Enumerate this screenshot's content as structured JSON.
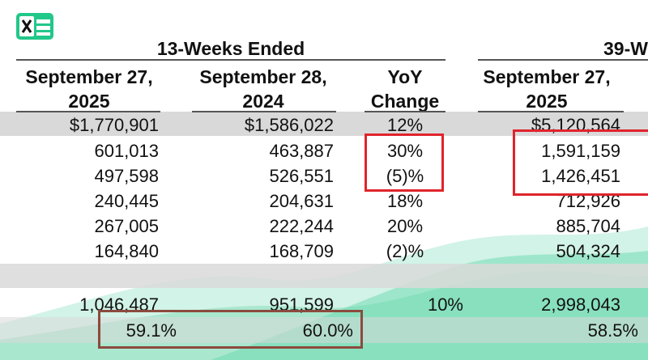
{
  "app": {
    "icon": "spreadsheet-icon",
    "accent": "#22c78a"
  },
  "header": {
    "period_13w": "13-Weeks Ended",
    "period_39w": "39-W"
  },
  "columns": [
    {
      "line1": "September 27,",
      "line2": "2025"
    },
    {
      "line1": "September 28,",
      "line2": "2024"
    },
    {
      "line1": "YoY",
      "line2": "Change"
    },
    {
      "line1": "September 27,",
      "line2": "2025"
    }
  ],
  "rows": [
    {
      "c1": "$1,770,901",
      "c2": "$1,586,022",
      "c3": "12%",
      "c4": "$5,120,564",
      "shaded": true
    },
    {
      "c1": "601,013",
      "c2": "463,887",
      "c3": "30%",
      "c4": "1,591,159",
      "shaded": false
    },
    {
      "c1": "497,598",
      "c2": "526,551",
      "c3": "(5)%",
      "c4": "1,426,451",
      "shaded": false
    },
    {
      "c1": "240,445",
      "c2": "204,631",
      "c3": "18%",
      "c4": "712,926",
      "shaded": false
    },
    {
      "c1": "267,005",
      "c2": "222,244",
      "c3": "20%",
      "c4": "885,704",
      "shaded": false
    },
    {
      "c1": "164,840",
      "c2": "168,709",
      "c3": "(2)%",
      "c4": "504,324",
      "shaded": false
    }
  ],
  "totals": {
    "c1": "1,046,487",
    "c2": "951,599",
    "c3": "10%",
    "c4": "2,998,043"
  },
  "margins": {
    "c1": "59.1%",
    "c2": "60.0%",
    "c4": "58.5%"
  },
  "colors": {
    "highlight_red": "#e0242c",
    "highlight_brown": "#8c4a3e",
    "row_shade": "#d9d9d9",
    "wave": "#3fcf9a"
  }
}
